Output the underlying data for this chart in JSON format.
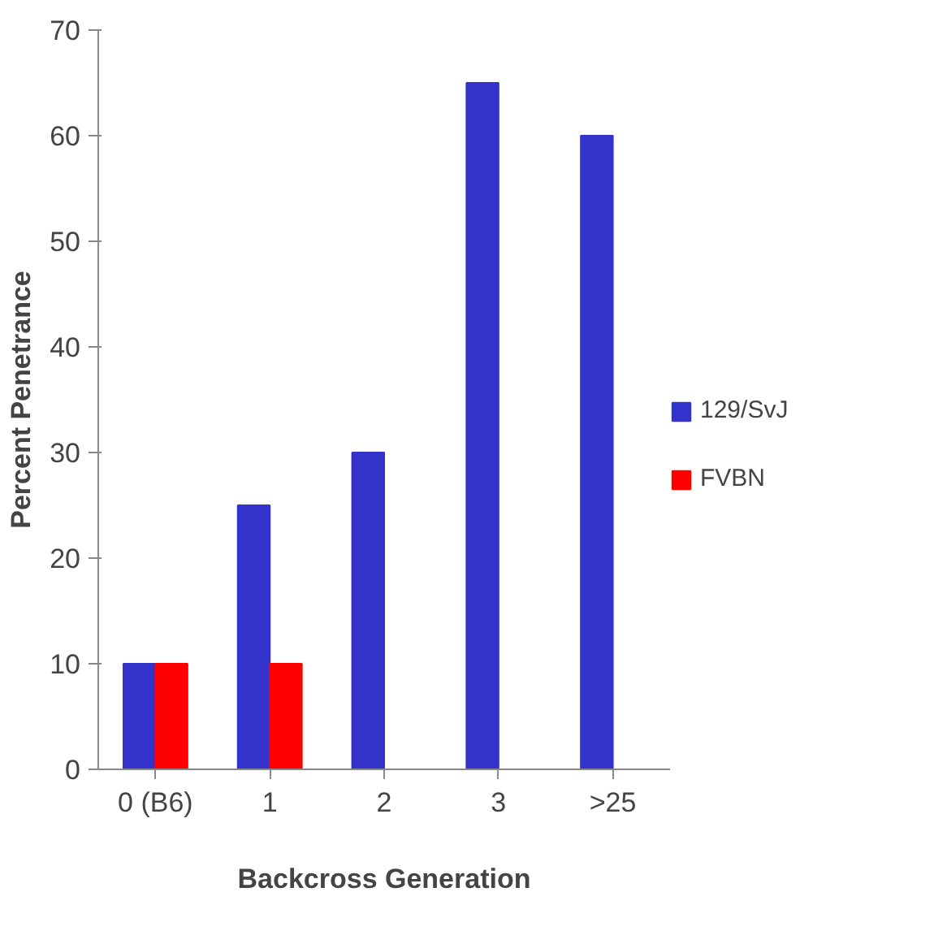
{
  "chart_data": {
    "type": "bar",
    "xlabel": "Backcross Generation",
    "ylabel": "Percent Penetrance",
    "categories": [
      "0 (B6)",
      "1",
      "2",
      "3",
      ">25"
    ],
    "series": [
      {
        "name": "129/SvJ",
        "color": "#3333cc",
        "values": [
          10,
          25,
          30,
          65,
          60
        ]
      },
      {
        "name": "FVBN",
        "color": "#ff0000",
        "values": [
          10,
          10,
          null,
          null,
          null
        ]
      }
    ],
    "ylim": [
      0,
      70
    ],
    "yticks": [
      0,
      10,
      20,
      30,
      40,
      50,
      60,
      70
    ],
    "grid": false,
    "legend": "right"
  }
}
